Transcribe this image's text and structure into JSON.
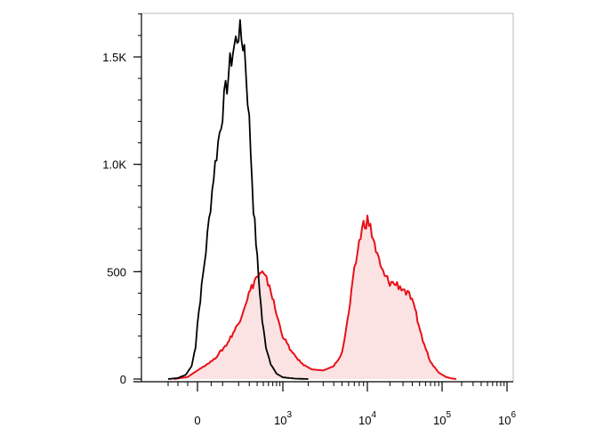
{
  "chart_data": {
    "type": "area",
    "xscale": "biexponential",
    "xlim": [
      -200,
      1000000
    ],
    "ylim": [
      0,
      1720
    ],
    "grid": false,
    "legend": "none",
    "y_ticks": [
      {
        "value": 0,
        "label": "0"
      },
      {
        "value": 500,
        "label": "500"
      },
      {
        "value": 1000,
        "label": "1.0K"
      },
      {
        "value": 1500,
        "label": "1.5K"
      }
    ],
    "x_ticks": [
      {
        "value": 0,
        "base": "0",
        "exp": ""
      },
      {
        "value": 1000,
        "base": "10",
        "exp": "3"
      },
      {
        "value": 10000,
        "base": "10",
        "exp": "4"
      },
      {
        "value": 100000,
        "base": "10",
        "exp": "5"
      },
      {
        "value": 1000000,
        "base": "10",
        "exp": "6"
      }
    ],
    "series": [
      {
        "color": "#000000",
        "fill": "none",
        "x": [
          -150,
          -100,
          -60,
          -30,
          -10,
          0,
          30,
          60,
          100,
          150,
          200,
          250,
          300,
          350,
          420,
          480,
          550,
          650,
          800,
          1000,
          1400,
          2000
        ],
        "y": [
          0,
          5,
          20,
          60,
          150,
          260,
          600,
          950,
          1250,
          1500,
          1620,
          1550,
          1200,
          800,
          480,
          270,
          150,
          70,
          25,
          8,
          2,
          0
        ]
      },
      {
        "color": "#e8101a",
        "fill": "#fbe3e3",
        "x": [
          -120,
          -50,
          0,
          60,
          120,
          200,
          280,
          380,
          480,
          620,
          800,
          1000,
          1300,
          1700,
          2200,
          3000,
          4000,
          5000,
          6000,
          7000,
          8000,
          9000,
          10000,
          11500,
          13000,
          15000,
          17000,
          20000,
          25000,
          30000,
          38000,
          45000,
          55000,
          70000,
          90000,
          115000,
          140000,
          165000
        ],
        "y": [
          0,
          10,
          40,
          90,
          160,
          260,
          380,
          470,
          490,
          440,
          300,
          200,
          120,
          70,
          45,
          40,
          60,
          120,
          300,
          500,
          640,
          720,
          740,
          680,
          600,
          520,
          480,
          450,
          440,
          420,
          380,
          300,
          180,
          80,
          30,
          10,
          3,
          0
        ]
      }
    ]
  }
}
